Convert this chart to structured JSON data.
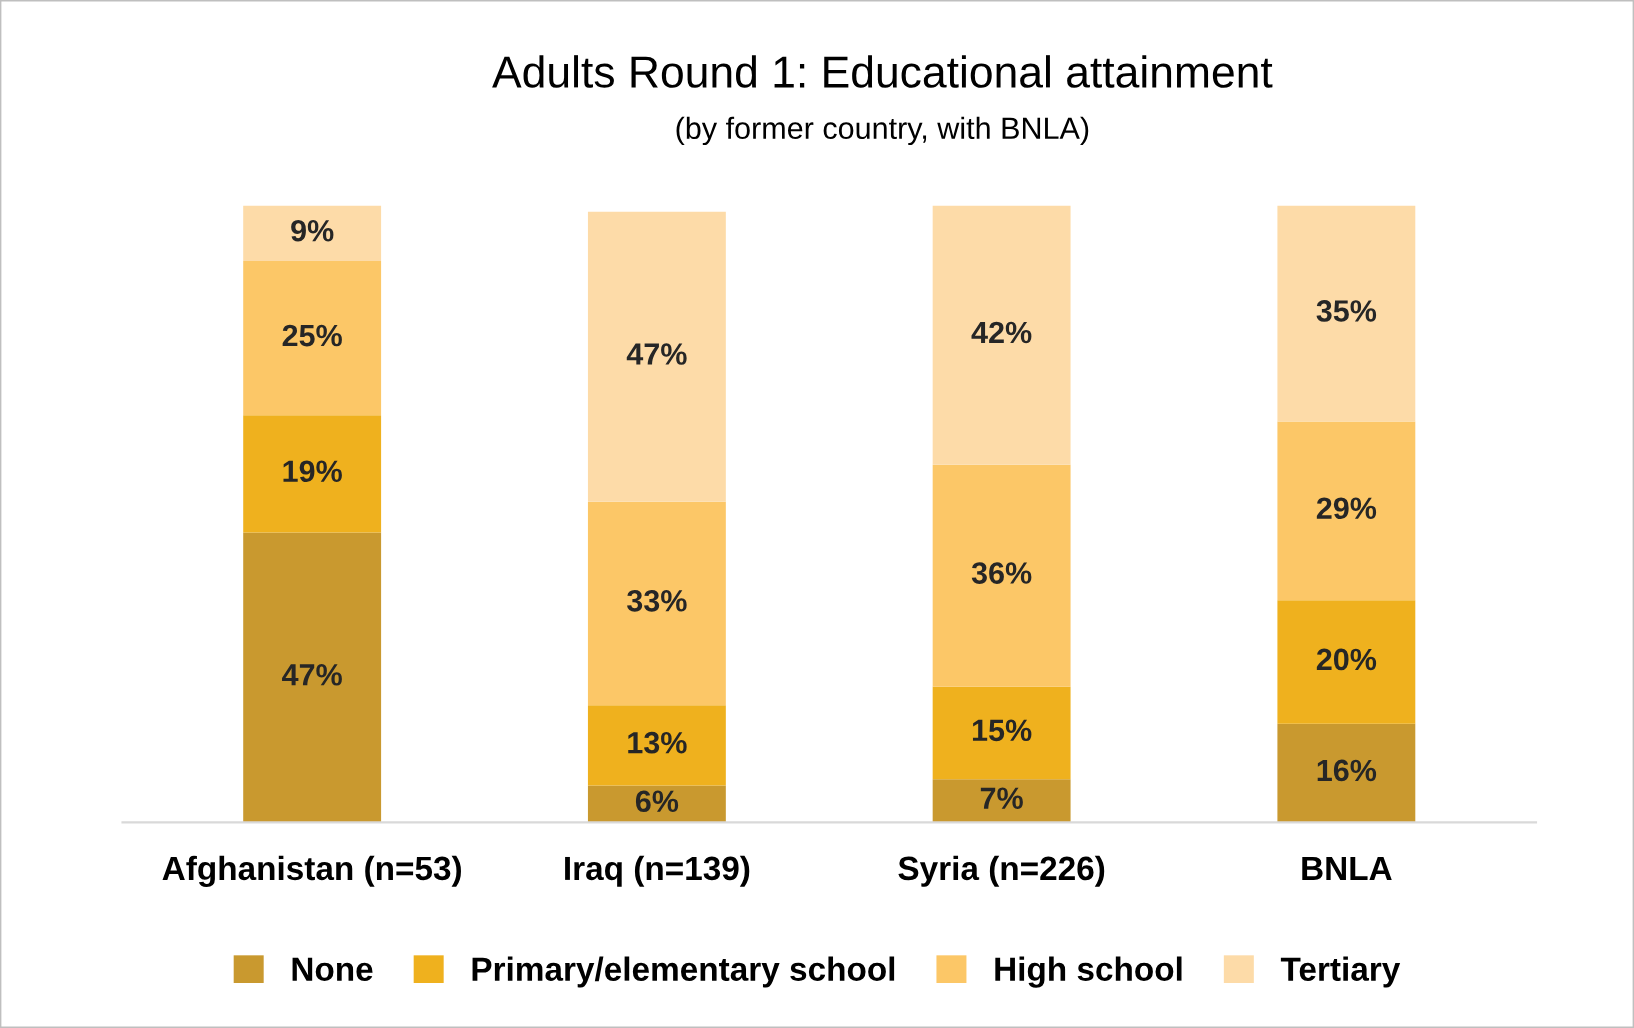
{
  "chart_data": {
    "type": "bar",
    "stacked": true,
    "title": "Adults Round 1: Educational attainment",
    "subtitle": "(by former country, with BNLA)",
    "categories": [
      "Afghanistan (n=53)",
      "Iraq (n=139)",
      "Syria (n=226)",
      "BNLA"
    ],
    "series": [
      {
        "name": "None",
        "color": "#c9992f",
        "values": [
          47,
          6,
          7,
          16
        ],
        "value_labels": [
          "47%",
          "6%",
          "7%",
          "16%"
        ]
      },
      {
        "name": "Primary/elementary school",
        "color": "#efb11e",
        "values": [
          19,
          13,
          15,
          20
        ],
        "value_labels": [
          "19%",
          "13%",
          "15%",
          "20%"
        ]
      },
      {
        "name": "High school",
        "color": "#fcc767",
        "values": [
          25,
          33,
          36,
          29
        ],
        "value_labels": [
          "25%",
          "33%",
          "36%",
          "29%"
        ]
      },
      {
        "name": "Tertiary",
        "color": "#fddba8",
        "values": [
          9,
          47,
          42,
          35
        ],
        "value_labels": [
          "9%",
          "47%",
          "42%",
          "35%"
        ]
      }
    ],
    "legend": "bottom",
    "grid": false
  }
}
